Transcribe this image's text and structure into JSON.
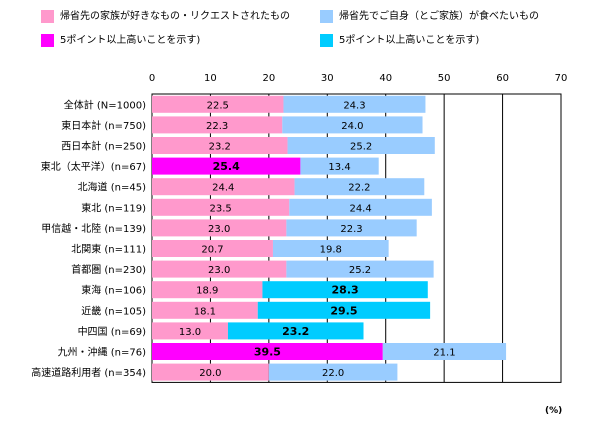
{
  "legend": [
    {
      "label": "帰省先の家族が好きなもの・リクエストされたもの",
      "color": "#ff99cc"
    },
    {
      "label": "帰省先でご自身（とご家族）が食べたいもの",
      "color": "#99ccff"
    },
    {
      "label": "5ポイント以上高いことを示す)",
      "color": "#ff00ff"
    },
    {
      "label": "5ポイント以上高いことを示す)",
      "color": "#00ccff"
    }
  ],
  "unit_label": "(%)",
  "chart_data": {
    "type": "bar",
    "orientation": "horizontal",
    "stacked": true,
    "categories": [
      "全体計 (N=1000)",
      "東日本計 (n=750)",
      "西日本計 (n=250)",
      "東北（太平洋）(n=67)",
      "北海道 (n=45)",
      "東北 (n=119)",
      "甲信越・北陸 (n=139)",
      "北関東 (n=111)",
      "首都圏 (n=230)",
      "東海 (n=106)",
      "近畿 (n=105)",
      "中四国 (n=69)",
      "九州・沖縄 (n=76)",
      "高速道路利用者 (n=354)"
    ],
    "series": [
      {
        "name": "帰省先の家族が好きなもの・リクエストされたもの",
        "values": [
          22.5,
          22.3,
          23.2,
          25.4,
          24.4,
          23.5,
          23.0,
          20.7,
          23.0,
          18.9,
          18.1,
          13.0,
          39.5,
          20.0
        ],
        "color": "#ff99cc",
        "highlight_color": "#ff00ff",
        "highlighted": [
          false,
          false,
          false,
          true,
          false,
          false,
          false,
          false,
          false,
          false,
          false,
          false,
          true,
          false
        ]
      },
      {
        "name": "帰省先でご自身（とご家族）が食べたいもの",
        "values": [
          24.3,
          24.0,
          25.2,
          13.4,
          22.2,
          24.4,
          22.3,
          19.8,
          25.2,
          28.3,
          29.5,
          23.2,
          21.1,
          22.0
        ],
        "color": "#99ccff",
        "highlight_color": "#00ccff",
        "highlighted": [
          false,
          false,
          false,
          false,
          false,
          false,
          false,
          false,
          false,
          true,
          true,
          true,
          false,
          false
        ]
      }
    ],
    "xlim": [
      0,
      70
    ],
    "xticks": [
      0,
      10,
      20,
      30,
      40,
      50,
      60,
      70
    ],
    "grid": true,
    "legend_position": "top"
  }
}
